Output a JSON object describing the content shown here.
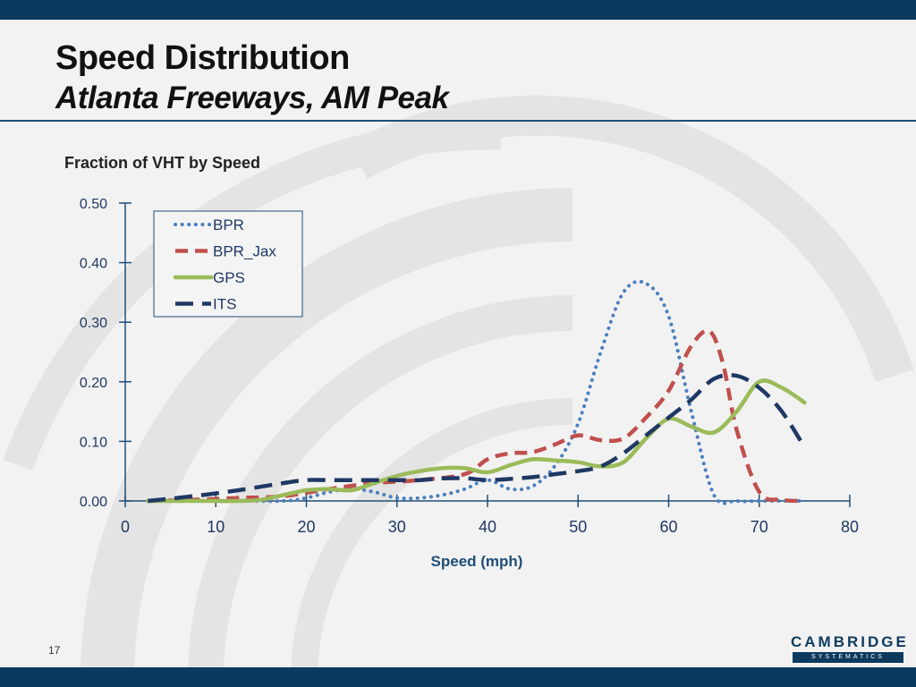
{
  "slide": {
    "title": "Speed Distribution",
    "subtitle": "Atlanta Freeways, AM Peak",
    "page_number": "17",
    "logo": {
      "name": "CAMBRIDGE",
      "sub": "SYSTEMATICS"
    }
  },
  "colors": {
    "bar": "#0c3a5e",
    "rule": "#1f4e79",
    "axis_label": "#1f4e79",
    "BPR": "#4a7fc0",
    "BPR_Jax": "#c0504d",
    "GPS": "#9bbb59",
    "ITS": "#1f3864"
  },
  "chart_data": {
    "type": "line",
    "title": "Fraction of VHT by Speed",
    "xlabel": "Speed (mph)",
    "ylabel": "",
    "xlim": [
      0,
      80
    ],
    "ylim": [
      0,
      0.5
    ],
    "xticks": [
      0,
      10,
      20,
      30,
      40,
      50,
      60,
      70,
      80
    ],
    "xtick_labels": [
      "0",
      "10",
      "20",
      "30",
      "40",
      "50",
      "60",
      "70",
      "80"
    ],
    "yticks": [
      0,
      0.1,
      0.2,
      0.3,
      0.4,
      0.5
    ],
    "ytick_labels": [
      "0.00",
      "0.10",
      "0.20",
      "0.30",
      "0.40",
      "0.50"
    ],
    "grid": false,
    "legend_position": "top-left",
    "series": [
      {
        "name": "BPR",
        "style": "dotted",
        "x": [
          2.5,
          7.5,
          12.5,
          17.5,
          20,
          22.5,
          25,
          27.5,
          30,
          32.5,
          35,
          37.5,
          40,
          42.5,
          45,
          47.5,
          50,
          52.5,
          55,
          57.5,
          60,
          62.5,
          65,
          67.5,
          70,
          72.5,
          75
        ],
        "y": [
          0,
          0,
          0,
          0,
          0.005,
          0.015,
          0.02,
          0.015,
          0.005,
          0.005,
          0.01,
          0.02,
          0.035,
          0.02,
          0.025,
          0.06,
          0.13,
          0.25,
          0.35,
          0.365,
          0.31,
          0.15,
          0.01,
          0,
          0,
          0,
          0
        ]
      },
      {
        "name": "BPR_Jax",
        "style": "dashed",
        "x": [
          2.5,
          7.5,
          12.5,
          17.5,
          22.5,
          27.5,
          32.5,
          37.5,
          40,
          42.5,
          45,
          47.5,
          50,
          52.5,
          55,
          57.5,
          60,
          62.5,
          64.5,
          66,
          67.5,
          70,
          72.5,
          75
        ],
        "y": [
          0,
          0.002,
          0.005,
          0.008,
          0.02,
          0.03,
          0.035,
          0.045,
          0.07,
          0.08,
          0.082,
          0.095,
          0.11,
          0.102,
          0.105,
          0.14,
          0.185,
          0.26,
          0.285,
          0.23,
          0.12,
          0.015,
          0.002,
          0
        ]
      },
      {
        "name": "GPS",
        "style": "solid",
        "x": [
          2.5,
          7.5,
          12.5,
          15,
          17.5,
          20,
          22.5,
          25,
          27.5,
          30,
          32.5,
          35,
          37.5,
          40,
          42.5,
          45,
          47.5,
          50,
          52.5,
          55,
          57.5,
          60,
          62.5,
          65,
          67.5,
          70,
          72.5,
          75
        ],
        "y": [
          0,
          0,
          0,
          0.002,
          0.01,
          0.018,
          0.02,
          0.018,
          0.03,
          0.042,
          0.05,
          0.055,
          0.055,
          0.048,
          0.06,
          0.07,
          0.068,
          0.065,
          0.058,
          0.065,
          0.105,
          0.138,
          0.125,
          0.115,
          0.15,
          0.2,
          0.19,
          0.165
        ]
      },
      {
        "name": "ITS",
        "style": "longdash",
        "x": [
          2.5,
          7.5,
          12.5,
          17.5,
          20,
          22.5,
          25,
          27.5,
          30,
          32.5,
          35,
          37.5,
          40,
          42.5,
          45,
          47.5,
          50,
          52.5,
          55,
          57.5,
          60,
          62.5,
          65,
          67.5,
          70,
          72.5,
          75
        ],
        "y": [
          0,
          0.008,
          0.018,
          0.03,
          0.035,
          0.035,
          0.035,
          0.035,
          0.035,
          0.035,
          0.038,
          0.038,
          0.035,
          0.037,
          0.04,
          0.045,
          0.05,
          0.058,
          0.08,
          0.11,
          0.14,
          0.17,
          0.205,
          0.21,
          0.19,
          0.15,
          0.09
        ]
      }
    ]
  }
}
